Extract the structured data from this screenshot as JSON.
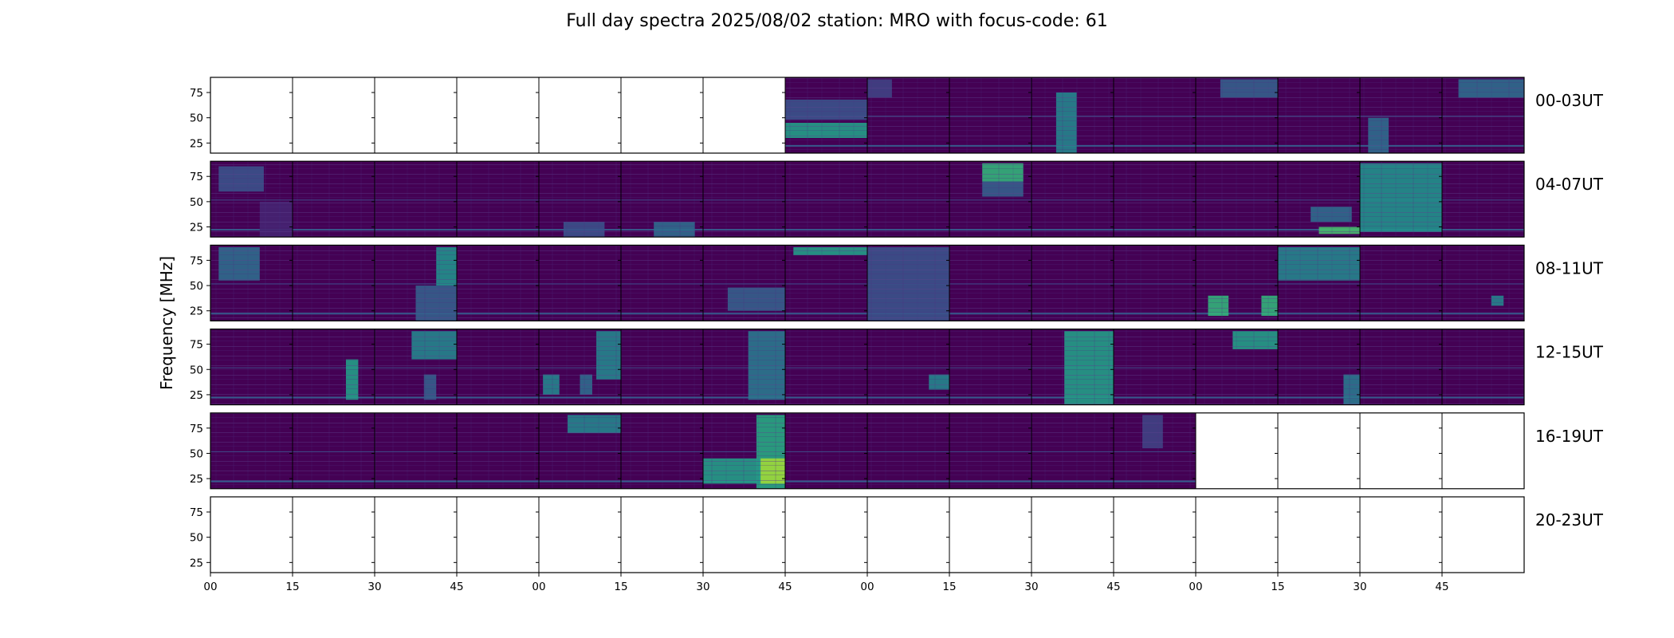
{
  "title": "Full day spectra 2025/08/02 station: MRO with focus-code: 61",
  "colors": {
    "background": "#440154",
    "panel_border": "#000000",
    "viridis_low": "#440154",
    "viridis_mid_low": "#3b528b",
    "viridis_mid": "#21918c",
    "viridis_mid_high": "#5ec962",
    "viridis_high": "#fde725"
  },
  "chart_data": {
    "type": "heatmap",
    "title": "Full day spectra 2025/08/02 station: MRO with focus-code: 61",
    "ylabel": "Frequency [MHz]",
    "xlabel": "",
    "ylim": [
      15,
      90
    ],
    "yticks": [
      "75",
      "50",
      "25"
    ],
    "ytick_values": [
      75,
      50,
      25
    ],
    "xticks": [
      "00",
      "15",
      "30",
      "45",
      "00",
      "15",
      "30",
      "45",
      "00",
      "15",
      "30",
      "45",
      "00",
      "15",
      "30",
      "45"
    ],
    "rows": [
      {
        "label": "00-03UT",
        "available": [
          0,
          0,
          0,
          0,
          0,
          0,
          0,
          1,
          1,
          1,
          1,
          1,
          1,
          1,
          1,
          1
        ],
        "features": [
          {
            "panel": 7,
            "f0": 30,
            "f1": 45,
            "i": 0.55,
            "x0": 0.0,
            "x1": 1.0
          },
          {
            "panel": 7,
            "f0": 48,
            "f1": 68,
            "i": 0.25,
            "x0": 0.0,
            "x1": 1.0
          },
          {
            "panel": 8,
            "f0": 70,
            "f1": 88,
            "i": 0.2,
            "x0": 0.0,
            "x1": 0.3
          },
          {
            "panel": 10,
            "f0": 15,
            "f1": 75,
            "i": 0.45,
            "x0": 0.3,
            "x1": 0.55
          },
          {
            "panel": 12,
            "f0": 70,
            "f1": 88,
            "i": 0.3,
            "x0": 0.3,
            "x1": 1.0
          },
          {
            "panel": 14,
            "f0": 15,
            "f1": 50,
            "i": 0.35,
            "x0": 0.1,
            "x1": 0.35
          },
          {
            "panel": 15,
            "f0": 70,
            "f1": 88,
            "i": 0.35,
            "x0": 0.2,
            "x1": 1.0
          }
        ]
      },
      {
        "label": "04-07UT",
        "available": [
          1,
          1,
          1,
          1,
          1,
          1,
          1,
          1,
          1,
          1,
          1,
          1,
          1,
          1,
          1,
          1
        ],
        "features": [
          {
            "panel": 0,
            "f0": 60,
            "f1": 85,
            "i": 0.25,
            "x0": 0.1,
            "x1": 0.65
          },
          {
            "panel": 0,
            "f0": 15,
            "f1": 50,
            "i": 0.1,
            "x0": 0.6,
            "x1": 1.0
          },
          {
            "panel": 4,
            "f0": 15,
            "f1": 30,
            "i": 0.25,
            "x0": 0.3,
            "x1": 0.8
          },
          {
            "panel": 5,
            "f0": 15,
            "f1": 30,
            "i": 0.35,
            "x0": 0.4,
            "x1": 0.9
          },
          {
            "panel": 9,
            "f0": 70,
            "f1": 88,
            "i": 0.65,
            "x0": 0.4,
            "x1": 0.9
          },
          {
            "panel": 9,
            "f0": 55,
            "f1": 70,
            "i": 0.3,
            "x0": 0.4,
            "x1": 0.9
          },
          {
            "panel": 13,
            "f0": 30,
            "f1": 45,
            "i": 0.35,
            "x0": 0.4,
            "x1": 0.9
          },
          {
            "panel": 13,
            "f0": 18,
            "f1": 25,
            "i": 0.7,
            "x0": 0.5,
            "x1": 1.0
          },
          {
            "panel": 14,
            "f0": 20,
            "f1": 88,
            "i": 0.5,
            "x0": 0.0,
            "x1": 1.0
          }
        ]
      },
      {
        "label": "08-11UT",
        "available": [
          1,
          1,
          1,
          1,
          1,
          1,
          1,
          1,
          1,
          1,
          1,
          1,
          1,
          1,
          1,
          1
        ],
        "features": [
          {
            "panel": 0,
            "f0": 55,
            "f1": 88,
            "i": 0.35,
            "x0": 0.1,
            "x1": 0.6
          },
          {
            "panel": 2,
            "f0": 50,
            "f1": 88,
            "i": 0.5,
            "x0": 0.75,
            "x1": 1.0
          },
          {
            "panel": 2,
            "f0": 15,
            "f1": 50,
            "i": 0.3,
            "x0": 0.5,
            "x1": 1.0
          },
          {
            "panel": 6,
            "f0": 25,
            "f1": 48,
            "i": 0.3,
            "x0": 0.3,
            "x1": 1.0
          },
          {
            "panel": 7,
            "f0": 80,
            "f1": 88,
            "i": 0.55,
            "x0": 0.1,
            "x1": 1.0
          },
          {
            "panel": 8,
            "f0": 15,
            "f1": 88,
            "i": 0.25,
            "x0": 0.0,
            "x1": 1.0
          },
          {
            "panel": 12,
            "f0": 20,
            "f1": 40,
            "i": 0.65,
            "x0": 0.15,
            "x1": 0.4
          },
          {
            "panel": 12,
            "f0": 20,
            "f1": 40,
            "i": 0.65,
            "x0": 0.8,
            "x1": 1.0
          },
          {
            "panel": 13,
            "f0": 55,
            "f1": 88,
            "i": 0.45,
            "x0": 0.0,
            "x1": 1.0
          },
          {
            "panel": 15,
            "f0": 30,
            "f1": 40,
            "i": 0.45,
            "x0": 0.6,
            "x1": 0.75
          }
        ]
      },
      {
        "label": "12-15UT",
        "available": [
          1,
          1,
          1,
          1,
          1,
          1,
          1,
          1,
          1,
          1,
          1,
          1,
          1,
          1,
          1,
          1
        ],
        "features": [
          {
            "panel": 1,
            "f0": 20,
            "f1": 60,
            "i": 0.55,
            "x0": 0.65,
            "x1": 0.8
          },
          {
            "panel": 2,
            "f0": 60,
            "f1": 88,
            "i": 0.45,
            "x0": 0.45,
            "x1": 1.0
          },
          {
            "panel": 2,
            "f0": 20,
            "f1": 45,
            "i": 0.3,
            "x0": 0.6,
            "x1": 0.75
          },
          {
            "panel": 4,
            "f0": 25,
            "f1": 45,
            "i": 0.45,
            "x0": 0.05,
            "x1": 0.25
          },
          {
            "panel": 4,
            "f0": 25,
            "f1": 45,
            "i": 0.35,
            "x0": 0.5,
            "x1": 0.65
          },
          {
            "panel": 4,
            "f0": 40,
            "f1": 88,
            "i": 0.45,
            "x0": 0.7,
            "x1": 1.0
          },
          {
            "panel": 6,
            "f0": 20,
            "f1": 88,
            "i": 0.4,
            "x0": 0.55,
            "x1": 1.0
          },
          {
            "panel": 8,
            "f0": 30,
            "f1": 45,
            "i": 0.45,
            "x0": 0.75,
            "x1": 1.0
          },
          {
            "panel": 10,
            "f0": 15,
            "f1": 88,
            "i": 0.55,
            "x0": 0.4,
            "x1": 1.0
          },
          {
            "panel": 12,
            "f0": 70,
            "f1": 88,
            "i": 0.55,
            "x0": 0.45,
            "x1": 1.0
          },
          {
            "panel": 13,
            "f0": 15,
            "f1": 45,
            "i": 0.4,
            "x0": 0.8,
            "x1": 1.0
          }
        ]
      },
      {
        "label": "16-19UT",
        "available": [
          1,
          1,
          1,
          1,
          1,
          1,
          1,
          1,
          1,
          1,
          1,
          1,
          0,
          0,
          0,
          0
        ],
        "features": [
          {
            "panel": 4,
            "f0": 70,
            "f1": 88,
            "i": 0.45,
            "x0": 0.35,
            "x1": 1.0
          },
          {
            "panel": 6,
            "f0": 15,
            "f1": 88,
            "i": 0.6,
            "x0": 0.65,
            "x1": 1.0
          },
          {
            "panel": 6,
            "f0": 20,
            "f1": 45,
            "i": 0.85,
            "x0": 0.7,
            "x1": 1.0
          },
          {
            "panel": 6,
            "f0": 20,
            "f1": 45,
            "i": 0.55,
            "x0": 0.0,
            "x1": 0.7
          },
          {
            "panel": 11,
            "f0": 55,
            "f1": 88,
            "i": 0.2,
            "x0": 0.35,
            "x1": 0.6
          }
        ]
      },
      {
        "label": "20-23UT",
        "available": [
          0,
          0,
          0,
          0,
          0,
          0,
          0,
          0,
          0,
          0,
          0,
          0,
          0,
          0,
          0,
          0
        ],
        "features": []
      }
    ]
  }
}
